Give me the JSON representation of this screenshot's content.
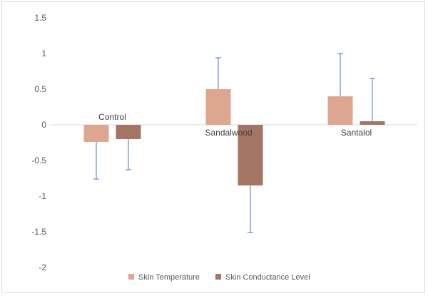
{
  "chart_data": {
    "type": "bar",
    "categories": [
      "Control",
      "Sandalwood",
      "Santalol"
    ],
    "series": [
      {
        "name": "Skin Temperature",
        "color": "#dfa68f",
        "values": [
          -0.24,
          0.5,
          0.4
        ],
        "error_plus": [
          0,
          0.44,
          0.6
        ],
        "error_minus": [
          0.52,
          0,
          0
        ]
      },
      {
        "name": "Skin Conductance Level",
        "color": "#a47563",
        "values": [
          -0.2,
          -0.85,
          0.05
        ],
        "error_plus": [
          0,
          0,
          0.6
        ],
        "error_minus": [
          0.43,
          0.66,
          0
        ]
      }
    ],
    "error_bar_color": "#4472c4",
    "title": "",
    "xlabel": "",
    "ylabel": "",
    "ylim": [
      -2,
      1.5
    ],
    "yticks": [
      "1.5",
      "1",
      "0.5",
      "0",
      "-0.5",
      "-1",
      "-1.5",
      "-2"
    ],
    "grid": false,
    "legend_position": "bottom"
  }
}
